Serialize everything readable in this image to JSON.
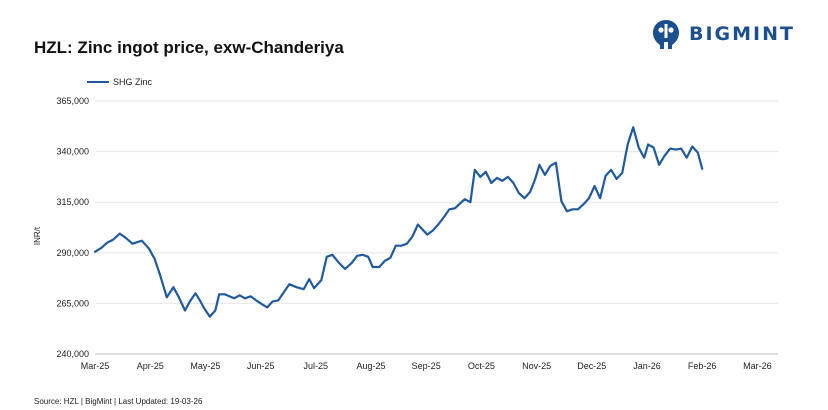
{
  "title": "HZL:  Zinc ingot price, exw-Chanderiya",
  "logo": {
    "text": "BIGMINT",
    "icon": "bigmint-logo-icon",
    "color": "#1c4f8f"
  },
  "source": "Source: HZL | BigMint | Last Updated: 19-03-26",
  "chart_data": {
    "type": "line",
    "title": "HZL:  Zinc ingot price, exw-Chanderiya",
    "ylabel": "INR/t",
    "xlabel": "",
    "ylim": [
      240000,
      365000
    ],
    "yticks": [
      240000,
      265000,
      290000,
      315000,
      340000,
      365000
    ],
    "ytick_labels": [
      "240,000",
      "265,000",
      "290,000",
      "315,000",
      "340,000",
      "365,000"
    ],
    "xtick_labels": [
      "Mar-25",
      "Apr-25",
      "May-25",
      "Jun-25",
      "Jul-25",
      "Aug-25",
      "Sep-25",
      "Oct-25",
      "Nov-25",
      "Dec-25",
      "Jan-26",
      "Feb-26",
      "Mar-26"
    ],
    "grid": "horizontal",
    "legend": "top-left",
    "series": [
      {
        "name": "SHG Zinc",
        "color": "#1f5aa0",
        "points": [
          [
            0.0,
            290500
          ],
          [
            0.12,
            292500
          ],
          [
            0.22,
            295000
          ],
          [
            0.33,
            296500
          ],
          [
            0.45,
            299500
          ],
          [
            0.55,
            297500
          ],
          [
            0.68,
            294500
          ],
          [
            0.85,
            296000
          ],
          [
            0.98,
            292000
          ],
          [
            1.08,
            287000
          ],
          [
            1.18,
            279000
          ],
          [
            1.3,
            268000
          ],
          [
            1.42,
            273000
          ],
          [
            1.52,
            268000
          ],
          [
            1.63,
            261500
          ],
          [
            1.72,
            266000
          ],
          [
            1.82,
            270000
          ],
          [
            1.9,
            266500
          ],
          [
            1.98,
            262500
          ],
          [
            2.08,
            258500
          ],
          [
            2.18,
            261500
          ],
          [
            2.25,
            269500
          ],
          [
            2.35,
            269500
          ],
          [
            2.52,
            267500
          ],
          [
            2.62,
            269000
          ],
          [
            2.72,
            267500
          ],
          [
            2.82,
            268500
          ],
          [
            2.92,
            266500
          ],
          [
            3.03,
            264500
          ],
          [
            3.12,
            263000
          ],
          [
            3.22,
            266000
          ],
          [
            3.32,
            266500
          ],
          [
            3.42,
            270500
          ],
          [
            3.52,
            274500
          ],
          [
            3.65,
            273000
          ],
          [
            3.78,
            272000
          ],
          [
            3.88,
            277000
          ],
          [
            3.97,
            272500
          ],
          [
            4.1,
            276500
          ],
          [
            4.2,
            288000
          ],
          [
            4.3,
            289000
          ],
          [
            4.42,
            285000
          ],
          [
            4.53,
            282000
          ],
          [
            4.65,
            285000
          ],
          [
            4.75,
            288500
          ],
          [
            4.85,
            289000
          ],
          [
            4.95,
            288000
          ],
          [
            5.03,
            283000
          ],
          [
            5.15,
            283000
          ],
          [
            5.25,
            286000
          ],
          [
            5.35,
            287500
          ],
          [
            5.45,
            293500
          ],
          [
            5.55,
            293500
          ],
          [
            5.65,
            294500
          ],
          [
            5.75,
            298000
          ],
          [
            5.85,
            304000
          ],
          [
            5.95,
            301000
          ],
          [
            6.02,
            299000
          ],
          [
            6.12,
            301000
          ],
          [
            6.22,
            304000
          ],
          [
            6.33,
            308000
          ],
          [
            6.42,
            311500
          ],
          [
            6.52,
            312000
          ],
          [
            6.6,
            314000
          ],
          [
            6.7,
            316500
          ],
          [
            6.8,
            315000
          ],
          [
            6.88,
            331000
          ],
          [
            6.98,
            327500
          ],
          [
            7.08,
            330000
          ],
          [
            7.18,
            324500
          ],
          [
            7.28,
            327000
          ],
          [
            7.38,
            325500
          ],
          [
            7.48,
            327500
          ],
          [
            7.58,
            324500
          ],
          [
            7.68,
            319500
          ],
          [
            7.78,
            317000
          ],
          [
            7.88,
            320000
          ],
          [
            7.97,
            326000
          ],
          [
            8.05,
            333500
          ],
          [
            8.15,
            328500
          ],
          [
            8.25,
            333000
          ],
          [
            8.35,
            334500
          ],
          [
            8.45,
            315500
          ],
          [
            8.55,
            310500
          ],
          [
            8.65,
            311500
          ],
          [
            8.75,
            311500
          ],
          [
            8.85,
            314000
          ],
          [
            8.95,
            317000
          ],
          [
            9.05,
            323000
          ],
          [
            9.15,
            317000
          ],
          [
            9.25,
            328000
          ],
          [
            9.35,
            331000
          ],
          [
            9.45,
            326500
          ],
          [
            9.55,
            329500
          ],
          [
            9.65,
            343500
          ],
          [
            9.75,
            352000
          ],
          [
            9.85,
            342000
          ],
          [
            9.95,
            337000
          ],
          [
            10.02,
            343500
          ],
          [
            10.12,
            342000
          ],
          [
            10.22,
            333500
          ],
          [
            10.32,
            338000
          ],
          [
            10.42,
            341500
          ],
          [
            10.52,
            341000
          ],
          [
            10.62,
            341500
          ],
          [
            10.72,
            337000
          ],
          [
            10.82,
            342500
          ],
          [
            10.92,
            339500
          ],
          [
            11.0,
            331500
          ]
        ]
      }
    ]
  }
}
